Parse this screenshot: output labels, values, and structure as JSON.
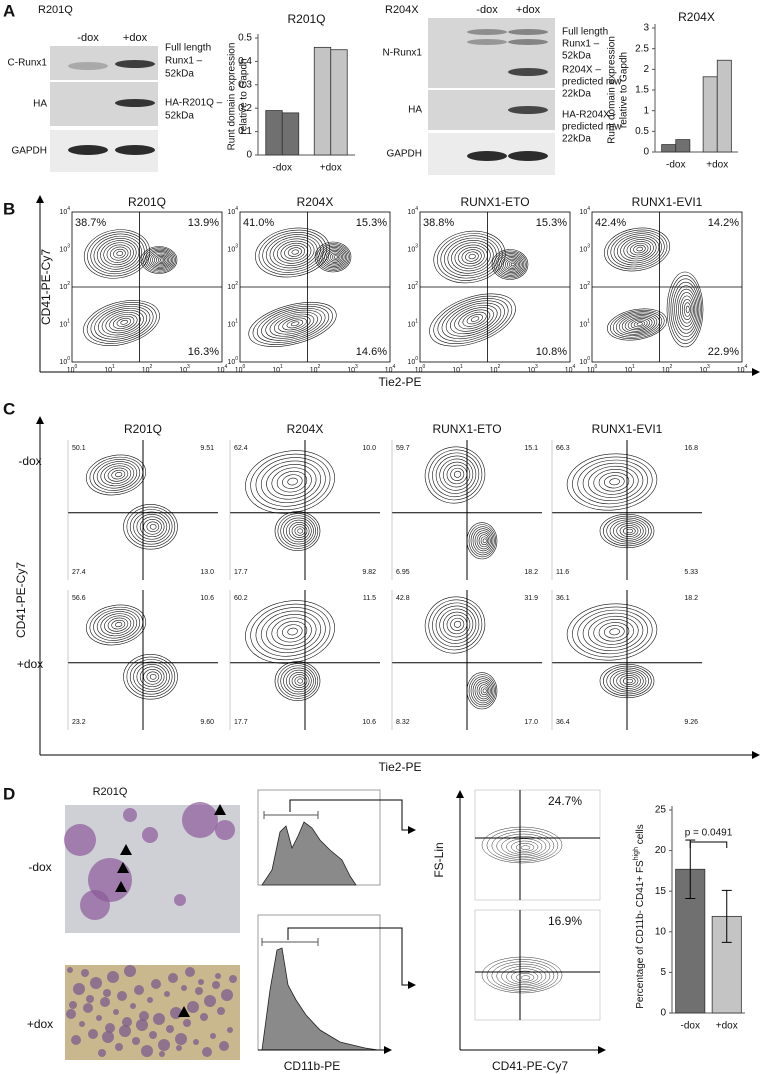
{
  "panels": {
    "a": "A",
    "b": "B",
    "c": "C",
    "d": "D"
  },
  "panel_a": {
    "r201q": {
      "title": "R201Q",
      "lanes": [
        "-dox",
        "+dox"
      ],
      "rows": [
        "C-Runx1",
        "HA",
        "GAPDH"
      ],
      "notes": [
        [
          "Full length",
          "Runx1 –",
          "52kDa"
        ],
        [
          "HA-R201Q –",
          "52kDa"
        ]
      ]
    },
    "r204x": {
      "title": "R204X",
      "lanes": [
        "-dox",
        "+dox"
      ],
      "rows": [
        "N-Runx1",
        "HA",
        "GAPDH"
      ],
      "notes": [
        [
          "Full length",
          "Runx1 –",
          "52kDa",
          "R204X –",
          "predicted mw",
          "22kDa"
        ],
        [
          "HA-R204X -",
          "predicted mw",
          "22kDa"
        ]
      ]
    }
  },
  "chart_data": [
    {
      "type": "bar",
      "title": "R201Q",
      "y_label": [
        "Runt domain expression",
        "relative to Gapdh"
      ],
      "categories": [
        "-dox",
        "+dox"
      ],
      "series": [
        {
          "values": [
            0.19,
            0.46
          ]
        },
        {
          "values": [
            0.18,
            0.45
          ]
        }
      ],
      "colors": [
        "#707070",
        "#c4c4c4"
      ],
      "ylim": [
        0,
        0.5
      ],
      "yticks": [
        0,
        0.1,
        0.2,
        0.3,
        0.4,
        0.5
      ]
    },
    {
      "type": "bar",
      "title": "R204X",
      "y_label": [
        "Runt domain expression",
        "relative to Gapdh"
      ],
      "categories": [
        "-dox",
        "+dox"
      ],
      "series": [
        {
          "values": [
            0.18,
            1.82
          ]
        },
        {
          "values": [
            0.3,
            2.22
          ]
        }
      ],
      "colors": [
        "#707070",
        "#c4c4c4"
      ],
      "ylim": [
        0,
        3
      ],
      "yticks": [
        0,
        0.5,
        1,
        1.5,
        2,
        2.5,
        3
      ]
    },
    {
      "type": "bar",
      "y_label": {
        "text": "Percentage of CD11b- CD41+ FS",
        "sup": "high",
        "end": " cells"
      },
      "annotation": "p = 0.0491",
      "categories": [
        "-dox",
        "+dox"
      ],
      "series": [
        {
          "values": [
            17.7,
            11.9
          ],
          "errors": [
            3.6,
            3.2
          ]
        }
      ],
      "colors": [
        "#707070",
        "#c4c4c4"
      ],
      "ylim": [
        0,
        25
      ],
      "yticks": [
        0,
        5,
        10,
        15,
        20,
        25
      ]
    }
  ],
  "panel_b": {
    "x_label": "Tie2-PE",
    "y_label": "CD41-PE-Cy7",
    "tick_base": "10",
    "tick_exponents": [
      "0",
      "1",
      "2",
      "3",
      "4"
    ],
    "plots": [
      {
        "title": "R201Q",
        "top_left": "38.7%",
        "top_right": "13.9%",
        "bottom_right": "16.3%"
      },
      {
        "title": "R204X",
        "top_left": "41.0%",
        "top_right": "15.3%",
        "bottom_right": "14.6%"
      },
      {
        "title": "RUNX1-ETO",
        "top_left": "38.8%",
        "top_right": "15.3%",
        "bottom_right": "10.8%"
      },
      {
        "title": "RUNX1-EVI1",
        "top_left": "42.4%",
        "top_right": "14.2%",
        "bottom_right": "22.9%"
      }
    ]
  },
  "panel_c": {
    "x_label": "Tie2-PE",
    "y_label": "CD41-PE-Cy7",
    "titles": [
      "R201Q",
      "R204X",
      "RUNX1-ETO",
      "RUNX1-EVI1"
    ],
    "rows": [
      "-dox",
      "+dox"
    ],
    "quadrants": [
      [
        [
          "50.1",
          "9.51",
          "27.4",
          "13.0"
        ],
        [
          "62.4",
          "10.0",
          "17.7",
          "9.82"
        ],
        [
          "59.7",
          "15.1",
          "6.95",
          "18.2"
        ],
        [
          "66.3",
          "16.8",
          "11.6",
          "5.33"
        ]
      ],
      [
        [
          "56.6",
          "10.6",
          "23.2",
          "9.60"
        ],
        [
          "60.2",
          "11.5",
          "17.7",
          "10.6"
        ],
        [
          "42.8",
          "31.9",
          "8.32",
          "17.0"
        ],
        [
          "36.1",
          "18.2",
          "36.4",
          "9.26"
        ]
      ]
    ]
  },
  "panel_d": {
    "title": "R201Q",
    "rows": [
      "-dox",
      "+dox"
    ],
    "hist_x_label": "CD11b-PE",
    "fs_y_label": "FS-Lin",
    "fs_x_label": "CD41-PE-Cy7",
    "fs_percent": [
      "24.7%",
      "16.9%"
    ]
  }
}
